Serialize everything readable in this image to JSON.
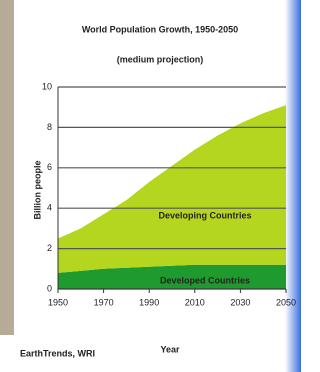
{
  "chart_data": {
    "type": "area",
    "stacked": true,
    "title": "World Population Growth, 1950-2050",
    "subtitle": "(medium projection)",
    "x_label": "Year",
    "y_label": "Billion people",
    "source": "EarthTrends, WRI",
    "x": [
      1950,
      1960,
      1970,
      1980,
      1990,
      2000,
      2010,
      2020,
      2030,
      2040,
      2050
    ],
    "series": [
      {
        "name": "Developed Countries",
        "color": "#1e9a2e",
        "values": [
          0.8,
          0.9,
          1.0,
          1.05,
          1.1,
          1.15,
          1.2,
          1.2,
          1.2,
          1.2,
          1.2
        ]
      },
      {
        "name": "Developing Countries",
        "color": "#b5d61e",
        "values": [
          1.7,
          2.1,
          2.7,
          3.35,
          4.2,
          4.95,
          5.7,
          6.4,
          7.0,
          7.5,
          7.9
        ]
      }
    ],
    "xlim": [
      1950,
      2050
    ],
    "xticks": [
      1950,
      1970,
      1990,
      2010,
      2030,
      2050
    ],
    "ylim": [
      0,
      10
    ],
    "yticks": [
      0,
      2,
      4,
      6,
      8,
      10
    ],
    "grid": true
  }
}
